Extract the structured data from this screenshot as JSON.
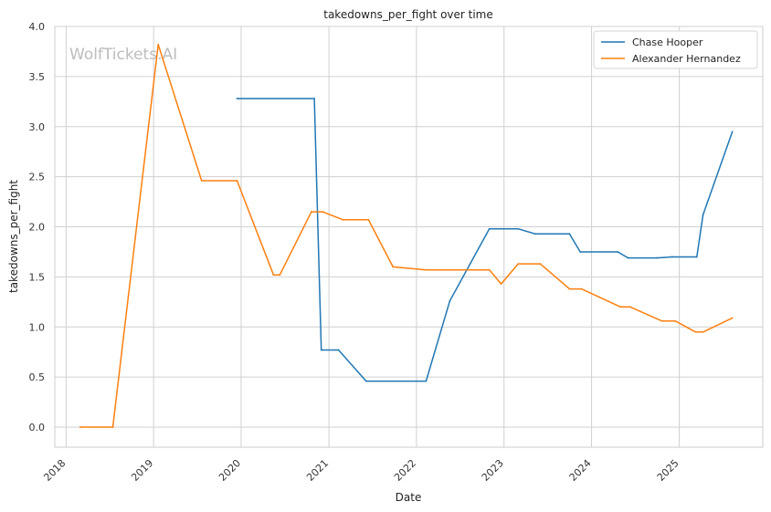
{
  "watermark": "WolfTickets.AI",
  "chart_data": {
    "type": "line",
    "title": "takedowns_per_fight over time",
    "xlabel": "Date",
    "ylabel": "takedowns_per_fight",
    "x_axis_type": "date",
    "xlim": [
      "2017-11-15",
      "2025-12-15"
    ],
    "ylim": [
      -0.2,
      4.0
    ],
    "x_ticks": [
      "2018",
      "2019",
      "2020",
      "2021",
      "2022",
      "2023",
      "2024",
      "2025"
    ],
    "y_ticks": [
      "0.0",
      "0.5",
      "1.0",
      "1.5",
      "2.0",
      "2.5",
      "3.0",
      "3.5",
      "4.0"
    ],
    "grid": true,
    "legend_position": "top-right",
    "series": [
      {
        "name": "Chase Hooper",
        "color": "#1f77b4",
        "points": [
          [
            "2019-12-15",
            3.28
          ],
          [
            "2020-11-01",
            3.28
          ],
          [
            "2020-11-30",
            0.77
          ],
          [
            "2021-02-10",
            0.77
          ],
          [
            "2021-06-05",
            0.46
          ],
          [
            "2022-02-10",
            0.46
          ],
          [
            "2022-05-20",
            1.26
          ],
          [
            "2022-11-01",
            1.98
          ],
          [
            "2023-03-01",
            1.98
          ],
          [
            "2023-05-10",
            1.93
          ],
          [
            "2023-10-01",
            1.93
          ],
          [
            "2023-11-15",
            1.75
          ],
          [
            "2024-04-20",
            1.75
          ],
          [
            "2024-06-01",
            1.69
          ],
          [
            "2024-10-01",
            1.69
          ],
          [
            "2024-12-01",
            1.7
          ],
          [
            "2025-03-15",
            1.7
          ],
          [
            "2025-04-10",
            2.12
          ],
          [
            "2025-08-10",
            2.95
          ]
        ]
      },
      {
        "name": "Alexander Hernandez",
        "color": "#ff7f0e",
        "points": [
          [
            "2018-03-01",
            0.0
          ],
          [
            "2018-07-15",
            0.0
          ],
          [
            "2019-01-20",
            3.82
          ],
          [
            "2019-07-20",
            2.46
          ],
          [
            "2019-12-15",
            2.46
          ],
          [
            "2020-05-15",
            1.52
          ],
          [
            "2020-06-10",
            1.52
          ],
          [
            "2020-10-20",
            2.15
          ],
          [
            "2020-12-05",
            2.15
          ],
          [
            "2021-03-01",
            2.07
          ],
          [
            "2021-06-15",
            2.07
          ],
          [
            "2021-09-25",
            1.6
          ],
          [
            "2022-02-10",
            1.57
          ],
          [
            "2022-11-01",
            1.57
          ],
          [
            "2022-12-20",
            1.43
          ],
          [
            "2023-03-01",
            1.63
          ],
          [
            "2023-06-01",
            1.63
          ],
          [
            "2023-10-01",
            1.38
          ],
          [
            "2023-11-20",
            1.38
          ],
          [
            "2024-05-01",
            1.2
          ],
          [
            "2024-06-10",
            1.2
          ],
          [
            "2024-10-20",
            1.06
          ],
          [
            "2024-12-15",
            1.06
          ],
          [
            "2025-03-10",
            0.95
          ],
          [
            "2025-04-10",
            0.95
          ],
          [
            "2025-08-10",
            1.09
          ]
        ]
      }
    ]
  }
}
